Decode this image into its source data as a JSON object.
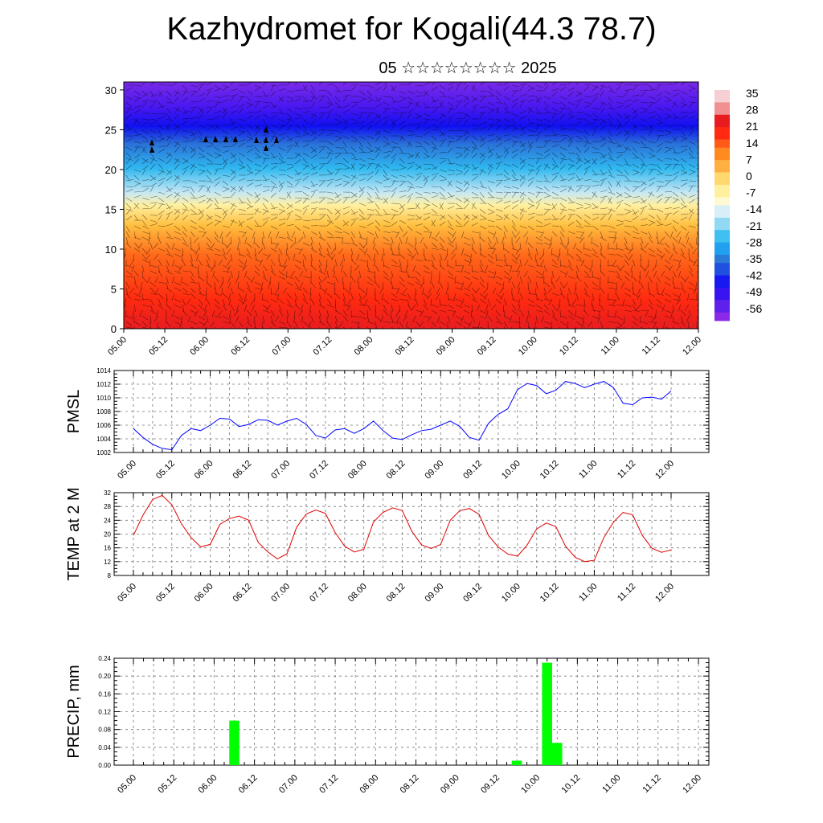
{
  "title": "Kazhydromet for Kogali(44.3 78.7)",
  "subtitle": "05 ☆☆☆☆☆☆☆☆ 2025",
  "colorbar": {
    "labels": [
      "35",
      "28",
      "21",
      "14",
      "7",
      "0",
      "-7",
      "-14",
      "-21",
      "-28",
      "-35",
      "-42",
      "-49",
      "-56"
    ],
    "colors": [
      "#f4c4c8",
      "#e81c20",
      "#ff4a1a",
      "#ff7a1a",
      "#ffb03a",
      "#ffe08a",
      "#fff3b8",
      "#c9e6f4",
      "#5ec8f2",
      "#1ea8f0",
      "#2a6ad8",
      "#1a2af2",
      "#4a16f0",
      "#8a2ae8"
    ]
  },
  "x_tick_labels": [
    "05.00",
    "05.12",
    "06.00",
    "06.12",
    "07.00",
    "07.12",
    "08.00",
    "08.12",
    "09.00",
    "09.12",
    "10.00",
    "10.12",
    "11.00",
    "11.12",
    "12.00"
  ],
  "chart_data": [
    {
      "type": "heatmap",
      "title": "",
      "xlabel": "",
      "ylabel": "",
      "x": [
        "05.00",
        "05.12",
        "06.00",
        "06.12",
        "07.00",
        "07.12",
        "08.00",
        "08.12",
        "09.00",
        "09.12",
        "10.00",
        "10.12",
        "11.00",
        "11.12",
        "12.00"
      ],
      "y_ticks": [
        0,
        5,
        10,
        15,
        20,
        25,
        30
      ],
      "ylim": [
        0,
        31
      ],
      "value_range": [
        -56,
        35
      ],
      "overlay": "wind barbs",
      "description_levels": [
        {
          "y": 0,
          "value": 35
        },
        {
          "y": 5,
          "value": 28
        },
        {
          "y": 10,
          "value": 21
        },
        {
          "y": 15,
          "value": 0
        },
        {
          "y": 20,
          "value": -28
        },
        {
          "y": 25,
          "value": -56
        },
        {
          "y": 31,
          "value": -49
        }
      ]
    },
    {
      "type": "line",
      "ylabel": "PMSL",
      "ylim": [
        1002,
        1014
      ],
      "y_ticks": [
        1002,
        1004,
        1006,
        1008,
        1010,
        1012,
        1014
      ],
      "x_ticks": [
        "05.00",
        "05.12",
        "06.00",
        "06.12",
        "07.00",
        "07.12",
        "08.00",
        "08.12",
        "09.00",
        "09.12",
        "10.00",
        "10.12",
        "11.00",
        "11.12",
        "12.00"
      ],
      "series": [
        {
          "color": "#0000ff",
          "values": [
            1005.5,
            1004.2,
            1003.2,
            1002.6,
            1002.4,
            1004.5,
            1005.5,
            1005.2,
            1006.0,
            1007.0,
            1006.9,
            1005.8,
            1006.1,
            1006.8,
            1006.7,
            1006.0,
            1006.6,
            1007.0,
            1006.1,
            1004.5,
            1004.1,
            1005.3,
            1005.5,
            1004.8,
            1005.5,
            1006.6,
            1005.2,
            1004.1,
            1003.9,
            1004.6,
            1005.2,
            1005.4,
            1006.0,
            1006.6,
            1005.8,
            1004.2,
            1003.8,
            1006.3,
            1007.6,
            1008.4,
            1011.2,
            1012.1,
            1011.8,
            1010.6,
            1011.1,
            1012.4,
            1012.1,
            1011.5,
            1012.0,
            1012.4,
            1011.5,
            1009.2,
            1009.0,
            1010.0,
            1010.1,
            1009.8,
            1011.0
          ]
        }
      ]
    },
    {
      "type": "line",
      "ylabel": "TEMP at 2 M",
      "ylim": [
        8,
        32
      ],
      "y_ticks": [
        8,
        12,
        16,
        20,
        24,
        28,
        32
      ],
      "x_ticks": [
        "05.00",
        "05.12",
        "06.00",
        "06.12",
        "07.00",
        "07.12",
        "08.00",
        "08.12",
        "09.00",
        "09.12",
        "10.00",
        "10.12",
        "11.00",
        "11.12",
        "12.00"
      ],
      "series": [
        {
          "color": "#e00000",
          "values": [
            19.6,
            25.5,
            30.0,
            31.2,
            28.5,
            23.0,
            19.0,
            16.3,
            17.0,
            22.8,
            24.5,
            25.2,
            24.0,
            17.6,
            14.8,
            12.8,
            14.3,
            22.0,
            25.8,
            27.0,
            26.0,
            20.5,
            16.5,
            14.8,
            15.6,
            23.5,
            26.3,
            27.6,
            26.8,
            20.8,
            16.9,
            15.8,
            17.0,
            24.0,
            26.8,
            27.4,
            25.7,
            19.5,
            16.2,
            14.2,
            13.6,
            16.8,
            21.5,
            23.2,
            22.2,
            16.5,
            13.3,
            12.0,
            12.4,
            19.0,
            23.5,
            26.3,
            25.6,
            19.6,
            15.9,
            14.7,
            15.4
          ]
        }
      ]
    },
    {
      "type": "bar",
      "ylabel": "PRECIP, mm",
      "ylim": [
        0,
        0.24
      ],
      "y_ticks": [
        "0.00",
        "0.04",
        "0.08",
        "0.12",
        "0.16",
        "0.20",
        "0.24"
      ],
      "x_ticks": [
        "05.00",
        "05.12",
        "06.00",
        "06.12",
        "07.00",
        "07.12",
        "08.00",
        "08.12",
        "09.00",
        "09.12",
        "10.00",
        "10.12",
        "11.00",
        "11.12",
        "12.00"
      ],
      "bar_color": "#00ff00",
      "bars": [
        {
          "x_hours": 30,
          "value": 0.1
        },
        {
          "x_hours": 114,
          "value": 0.01
        },
        {
          "x_hours": 123,
          "value": 0.23
        },
        {
          "x_hours": 126,
          "value": 0.05
        }
      ]
    }
  ]
}
